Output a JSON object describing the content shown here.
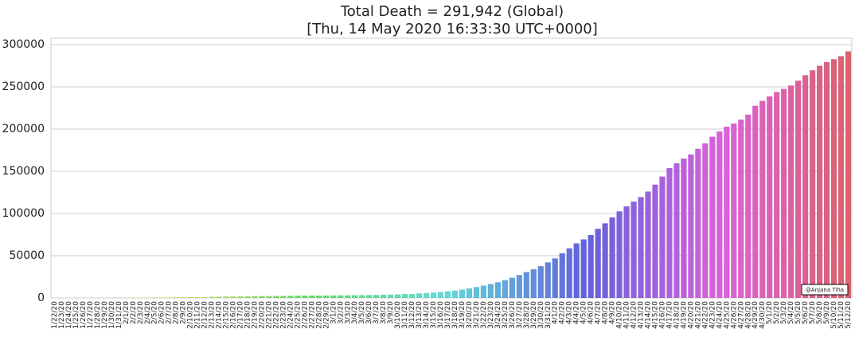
{
  "chart_data": {
    "type": "bar",
    "title": "Total Death = 291,942 (Global)",
    "subtitle": "[Thu, 14 May 2020 16:33:30 UTC+0000]",
    "annotation": "@Anjana Tiha",
    "palette": "husl",
    "grid": true,
    "ylim": [
      0,
      307500
    ],
    "yticks": [
      0,
      50000,
      100000,
      150000,
      200000,
      250000,
      300000
    ],
    "categories": [
      "1/22/20",
      "1/23/20",
      "1/24/20",
      "1/25/20",
      "1/26/20",
      "1/27/20",
      "1/28/20",
      "1/29/20",
      "1/30/20",
      "1/31/20",
      "2/1/20",
      "2/2/20",
      "2/3/20",
      "2/4/20",
      "2/5/20",
      "2/6/20",
      "2/7/20",
      "2/8/20",
      "2/9/20",
      "2/10/20",
      "2/11/20",
      "2/12/20",
      "2/13/20",
      "2/14/20",
      "2/15/20",
      "2/16/20",
      "2/17/20",
      "2/18/20",
      "2/19/20",
      "2/20/20",
      "2/21/20",
      "2/22/20",
      "2/23/20",
      "2/24/20",
      "2/25/20",
      "2/26/20",
      "2/27/20",
      "2/28/20",
      "2/29/20",
      "3/1/20",
      "3/2/20",
      "3/3/20",
      "3/4/20",
      "3/5/20",
      "3/6/20",
      "3/7/20",
      "3/8/20",
      "3/9/20",
      "3/10/20",
      "3/11/20",
      "3/12/20",
      "3/13/20",
      "3/14/20",
      "3/15/20",
      "3/16/20",
      "3/17/20",
      "3/18/20",
      "3/19/20",
      "3/20/20",
      "3/21/20",
      "3/22/20",
      "3/23/20",
      "3/24/20",
      "3/25/20",
      "3/26/20",
      "3/27/20",
      "3/28/20",
      "3/29/20",
      "3/30/20",
      "3/31/20",
      "4/1/20",
      "4/2/20",
      "4/3/20",
      "4/4/20",
      "4/5/20",
      "4/6/20",
      "4/7/20",
      "4/8/20",
      "4/9/20",
      "4/10/20",
      "4/11/20",
      "4/12/20",
      "4/13/20",
      "4/14/20",
      "4/15/20",
      "4/16/20",
      "4/17/20",
      "4/18/20",
      "4/19/20",
      "4/20/20",
      "4/21/20",
      "4/22/20",
      "4/23/20",
      "4/24/20",
      "4/25/20",
      "4/26/20",
      "4/27/20",
      "4/28/20",
      "4/29/20",
      "4/30/20",
      "5/1/20",
      "5/2/20",
      "5/3/20",
      "5/4/20",
      "5/5/20",
      "5/6/20",
      "5/7/20",
      "5/8/20",
      "5/9/20",
      "5/10/20",
      "5/11/20",
      "5/12/20"
    ],
    "values": [
      17,
      18,
      26,
      42,
      56,
      82,
      131,
      133,
      171,
      213,
      259,
      362,
      426,
      492,
      564,
      634,
      719,
      806,
      906,
      1013,
      1113,
      1118,
      1371,
      1523,
      1666,
      1770,
      1868,
      2007,
      2122,
      2247,
      2251,
      2458,
      2469,
      2629,
      2708,
      2770,
      2814,
      2872,
      2941,
      2996,
      3085,
      3160,
      3254,
      3348,
      3460,
      3558,
      3802,
      3988,
      4262,
      4615,
      4720,
      5404,
      5819,
      6440,
      7126,
      7905,
      8733,
      9867,
      11299,
      12973,
      14623,
      16497,
      18615,
      21181,
      23970,
      27198,
      30652,
      33925,
      37582,
      42107,
      46809,
      52983,
      58787,
      64606,
      69374,
      74565,
      81865,
      88338,
      95455,
      102525,
      108502,
      114090,
      119481,
      125983,
      134176,
      143800,
      153821,
      159509,
      165043,
      169986,
      176583,
      183066,
      190858,
      197159,
      202846,
      206544,
      211167,
      217153,
      227638,
      233388,
      238650,
      243808,
      247470,
      251537,
      257239,
      263831,
      269567,
      274898,
      279311,
      282709,
      286330,
      291942
    ]
  }
}
